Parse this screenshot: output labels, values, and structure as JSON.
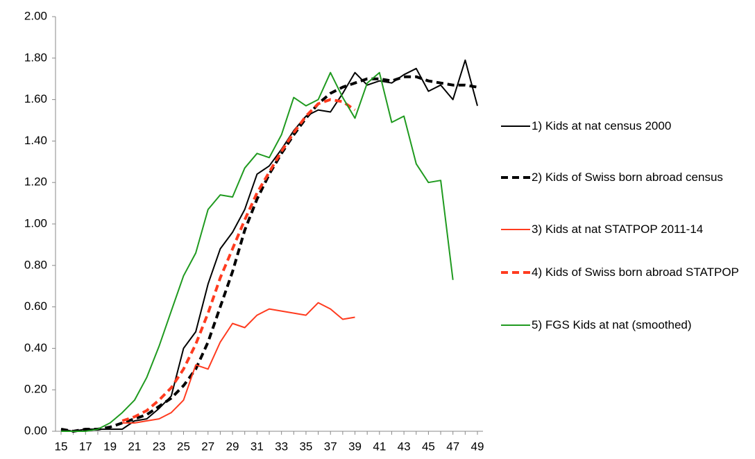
{
  "chart_data": {
    "type": "line",
    "categories": [
      "15",
      null,
      "17",
      null,
      "19",
      null,
      "21",
      null,
      "23",
      null,
      "25",
      null,
      "27",
      null,
      "29",
      null,
      "31",
      null,
      "33",
      null,
      "35",
      null,
      "37",
      null,
      "39",
      null,
      "41",
      null,
      "43",
      null,
      "45",
      null,
      "47",
      null,
      "49"
    ],
    "ylim": [
      0,
      2
    ],
    "yticks": [
      {
        "value": 0,
        "label": "0.00"
      },
      {
        "value": 0.2,
        "label": "0.20"
      },
      {
        "value": 0.4,
        "label": "0.40"
      },
      {
        "value": 0.6,
        "label": "0.60"
      },
      {
        "value": 0.8,
        "label": "0.80"
      },
      {
        "value": 1,
        "label": "1.00"
      },
      {
        "value": 1.2,
        "label": "1.20"
      },
      {
        "value": 1.4,
        "label": "1.40"
      },
      {
        "value": 1.6,
        "label": "1.60"
      },
      {
        "value": 1.8,
        "label": "1.80"
      },
      {
        "value": 2,
        "label": "2.00"
      }
    ],
    "grid": false,
    "legend": "right",
    "series": [
      {
        "name": "1) Kids at nat census 2000",
        "color": "#000000",
        "dashed": false,
        "values": [
          0.01,
          0.0,
          0.01,
          0.01,
          0.01,
          0.01,
          0.05,
          0.06,
          0.11,
          0.17,
          0.4,
          0.48,
          0.71,
          0.88,
          0.96,
          1.07,
          1.24,
          1.28,
          1.36,
          1.45,
          1.52,
          1.55,
          1.54,
          1.63,
          1.73,
          1.67,
          1.69,
          1.68,
          1.72,
          1.75,
          1.64,
          1.67,
          1.6,
          1.79,
          1.57
        ]
      },
      {
        "name": "2) Kids of Swiss born abroad census",
        "color": "#000000",
        "dashed": true,
        "values": [
          0.01,
          0.0,
          0.01,
          0.01,
          0.02,
          0.04,
          0.06,
          0.08,
          0.12,
          0.16,
          0.22,
          0.3,
          0.43,
          0.6,
          0.77,
          0.97,
          1.12,
          1.24,
          1.34,
          1.43,
          1.51,
          1.58,
          1.63,
          1.66,
          1.68,
          1.7,
          1.7,
          1.69,
          1.71,
          1.71,
          1.69,
          1.68,
          1.67,
          1.67,
          1.66
        ]
      },
      {
        "name": "3) Kids at nat STATPOP 2011-14",
        "color": "#ff3b1f",
        "dashed": false,
        "values": [
          null,
          null,
          null,
          null,
          null,
          0.04,
          0.04,
          0.05,
          0.06,
          0.09,
          0.15,
          0.32,
          0.3,
          0.43,
          0.52,
          0.5,
          0.56,
          0.59,
          0.58,
          0.57,
          0.56,
          0.62,
          0.59,
          0.54,
          0.55,
          null,
          null,
          null,
          null,
          null,
          null,
          null,
          null,
          null,
          null
        ]
      },
      {
        "name": "4) Kids of Swiss born abroad STATPOP",
        "color": "#ff3b1f",
        "dashed": true,
        "values": [
          null,
          null,
          null,
          null,
          null,
          0.05,
          0.07,
          0.1,
          0.15,
          0.21,
          0.3,
          0.42,
          0.57,
          0.74,
          0.88,
          1.02,
          1.15,
          1.25,
          1.35,
          1.44,
          1.52,
          1.58,
          1.6,
          1.59,
          1.55,
          null,
          null,
          null,
          null,
          null,
          null,
          null,
          null,
          null,
          null
        ]
      },
      {
        "name": "5) FGS Kids at nat (smoothed)",
        "color": "#1f9a1f",
        "dashed": false,
        "values": [
          0.0,
          0.0,
          0.0,
          0.01,
          0.04,
          0.09,
          0.15,
          0.26,
          0.41,
          0.58,
          0.75,
          0.86,
          1.07,
          1.14,
          1.13,
          1.27,
          1.34,
          1.32,
          1.43,
          1.61,
          1.57,
          1.6,
          1.73,
          1.61,
          1.51,
          1.68,
          1.73,
          1.49,
          1.52,
          1.29,
          1.2,
          1.21,
          0.73,
          null,
          null
        ]
      }
    ]
  }
}
